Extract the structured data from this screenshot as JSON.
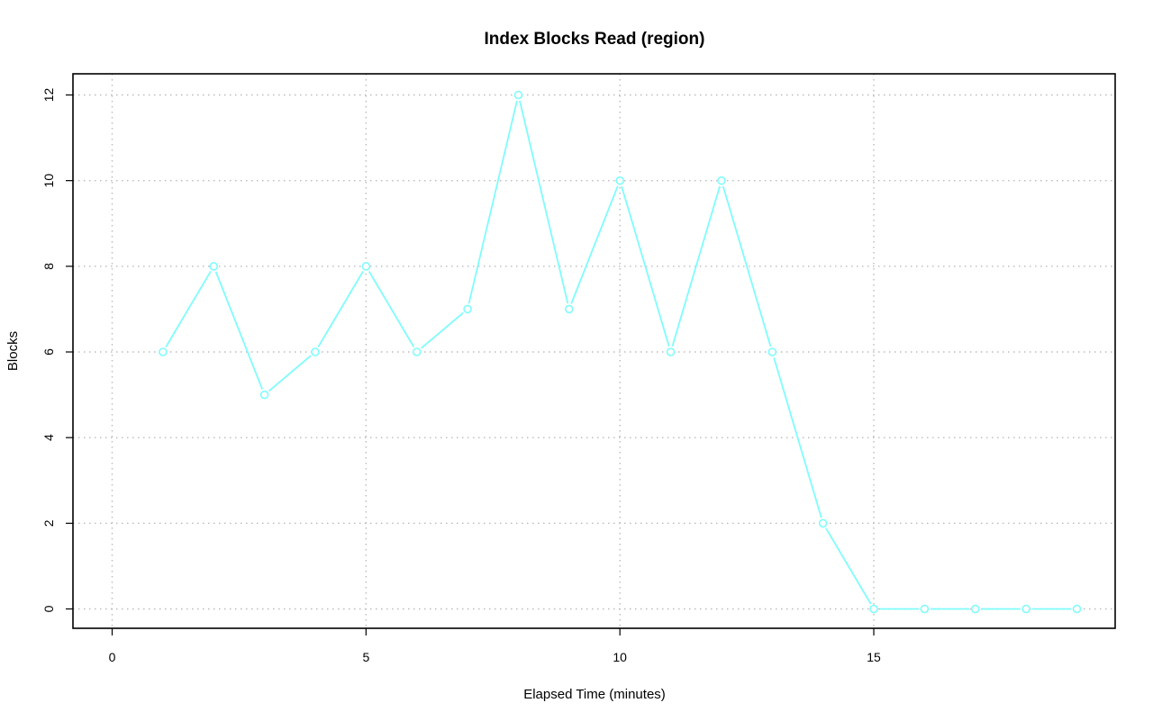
{
  "chart_data": {
    "type": "line",
    "title": "Index Blocks Read (region)",
    "xlabel": "Elapsed Time (minutes)",
    "ylabel": "Blocks",
    "xlim": [
      0,
      19
    ],
    "ylim": [
      0,
      12
    ],
    "x_ticks": [
      0,
      5,
      10,
      15
    ],
    "y_ticks": [
      0,
      2,
      4,
      6,
      8,
      10,
      12
    ],
    "x_tick_labels": [
      "0",
      "5",
      "10",
      "15"
    ],
    "y_tick_labels": [
      "0",
      "2",
      "4",
      "6",
      "8",
      "10",
      "12"
    ],
    "grid": true,
    "legend": "none",
    "color": "#7ffcfc",
    "x": [
      1,
      2,
      3,
      4,
      5,
      6,
      7,
      8,
      9,
      10,
      11,
      12,
      13,
      14,
      15,
      16,
      17,
      18,
      19
    ],
    "y": [
      6,
      8,
      5,
      6,
      8,
      6,
      7,
      12,
      7,
      10,
      6,
      10,
      6,
      2,
      0,
      0,
      0,
      0,
      0
    ]
  }
}
